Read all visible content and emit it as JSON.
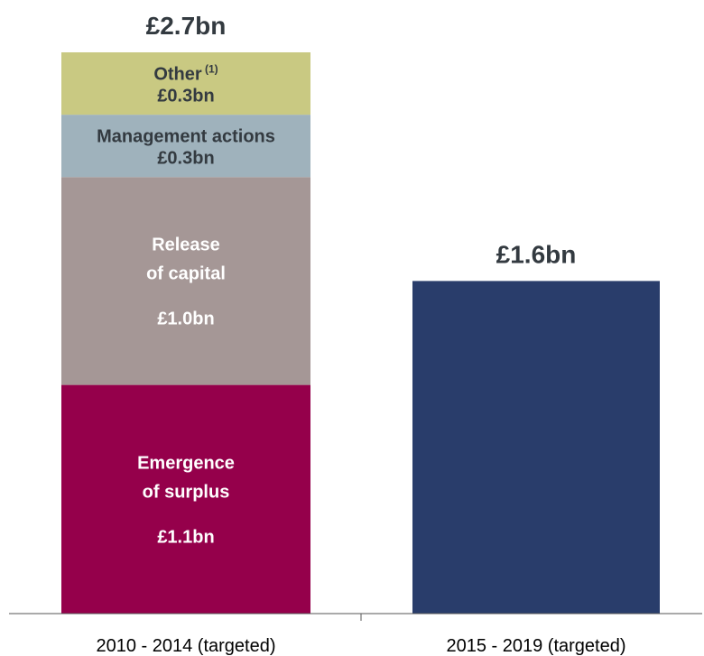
{
  "chart_data": {
    "type": "bar",
    "stacked": true,
    "categories": [
      "2010 - 2014 (targeted)",
      "2015 - 2019 (targeted)"
    ],
    "totals": [
      "£2.7bn",
      "£1.6bn"
    ],
    "total_values": [
      2.7,
      1.6
    ],
    "unit": "£bn",
    "ylim": [
      0,
      2.7
    ],
    "grid": false,
    "stacks": [
      {
        "category": "2010 - 2014 (targeted)",
        "segments": [
          {
            "name_lines": [
              "Emergence",
              "of surplus"
            ],
            "value": 1.1,
            "value_label": "£1.1bn",
            "color": "#95004b",
            "text_color": "#ffffff"
          },
          {
            "name_lines": [
              "Release",
              "of capital"
            ],
            "value": 1.0,
            "value_label": "£1.0bn",
            "color": "#a59796",
            "text_color": "#ffffff"
          },
          {
            "name_lines": [
              "Management actions"
            ],
            "value": 0.3,
            "value_label": "£0.3bn",
            "color": "#9fb2bc",
            "text_color": "#333a40"
          },
          {
            "name_lines": [
              "Other"
            ],
            "name_superscript": "(1)",
            "value": 0.3,
            "value_label": "£0.3bn",
            "color": "#c9c982",
            "text_color": "#333a40"
          }
        ]
      },
      {
        "category": "2015 - 2019 (targeted)",
        "segments": [
          {
            "name_lines": [],
            "value": 1.6,
            "value_label": "",
            "color": "#293d6b",
            "text_color": "#ffffff"
          }
        ]
      }
    ]
  }
}
